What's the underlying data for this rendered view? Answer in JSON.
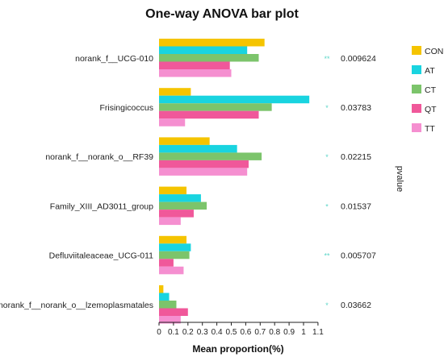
{
  "chart_data": {
    "type": "bar",
    "orientation": "horizontal",
    "title": "One-way ANOVA bar plot",
    "xlabel": "Mean proportion(%)",
    "side_label": "pvalue",
    "xlim": [
      0,
      1.1
    ],
    "xticks": [
      "0",
      "0.1",
      "0.2",
      "0.3",
      "0.4",
      "0.5",
      "0.6",
      "0.7",
      "0.8",
      "0.9",
      "1",
      "1.1"
    ],
    "categories": [
      "norank_f__UCG-010",
      "Frisingicoccus",
      "norank_f__norank_o__RF39",
      "Family_XIII_AD3011_group",
      "Defluviitaleaceae_UCG-011",
      "norank_f__norank_o__lzemoplasmatales"
    ],
    "series": [
      {
        "name": "CON",
        "color": "#f5c400",
        "values": [
          0.73,
          0.22,
          0.35,
          0.19,
          0.19,
          0.03
        ]
      },
      {
        "name": "AT",
        "color": "#19d4e0",
        "values": [
          0.61,
          1.04,
          0.54,
          0.29,
          0.22,
          0.07
        ]
      },
      {
        "name": "CT",
        "color": "#7cc46b",
        "values": [
          0.69,
          0.78,
          0.71,
          0.33,
          0.21,
          0.12
        ]
      },
      {
        "name": "QT",
        "color": "#f0589a",
        "values": [
          0.49,
          0.69,
          0.62,
          0.24,
          0.1,
          0.2
        ]
      },
      {
        "name": "TT",
        "color": "#f58fd0",
        "values": [
          0.5,
          0.18,
          0.61,
          0.15,
          0.17,
          0.15
        ]
      }
    ],
    "pvalues": [
      "0.009624",
      "0.03783",
      "0.02215",
      "0.01537",
      "0.005707",
      "0.03662"
    ],
    "significance": [
      "**",
      "*",
      "*",
      "*",
      "**",
      "*"
    ],
    "legend_position": "top-right"
  }
}
